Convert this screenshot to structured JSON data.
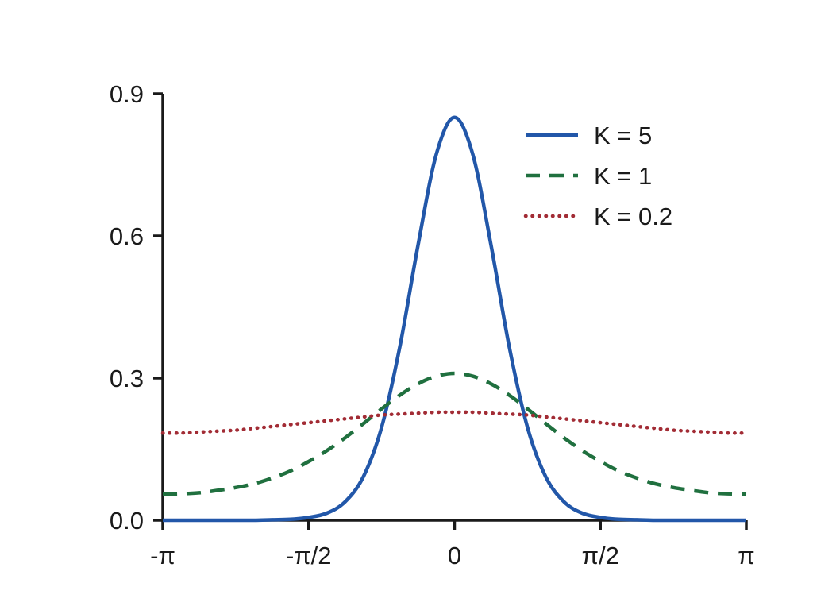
{
  "figure": {
    "background": "#ffffff",
    "text_color": "#1a1a1a"
  },
  "chart_data": {
    "type": "line",
    "title": "",
    "xlabel": "",
    "ylabel": "",
    "xlim": [
      -1,
      1
    ],
    "ylim": [
      0,
      0.9
    ],
    "grid": false,
    "legend_position": "upper right",
    "axis_color": "#1a1a1a",
    "x_units": "radians, expressed as multiples of pi",
    "x_over_pi": [
      -1,
      -0.9375,
      -0.875,
      -0.8125,
      -0.75,
      -0.6875,
      -0.625,
      -0.5625,
      -0.5,
      -0.4375,
      -0.375,
      -0.3125,
      -0.25,
      -0.1875,
      -0.125,
      -0.0625,
      0,
      0.0625,
      0.125,
      0.1875,
      0.25,
      0.3125,
      0.375,
      0.4375,
      0.5,
      0.5625,
      0.625,
      0.6875,
      0.75,
      0.8125,
      0.875,
      0.9375,
      1
    ],
    "series": [
      {
        "name": "K = 5",
        "color": "#2257a9",
        "style": "solid",
        "values": [
          0,
          0,
          0,
          0,
          0,
          0,
          0.001,
          0.002,
          0.006,
          0.015,
          0.039,
          0.092,
          0.196,
          0.366,
          0.581,
          0.772,
          0.85,
          0.772,
          0.581,
          0.366,
          0.196,
          0.092,
          0.039,
          0.015,
          0.006,
          0.002,
          0.001,
          0,
          0,
          0,
          0,
          0,
          0
        ]
      },
      {
        "name": "K = 1",
        "color": "#20703f",
        "style": "dashed",
        "values": [
          0.055,
          0.056,
          0.058,
          0.063,
          0.069,
          0.077,
          0.089,
          0.104,
          0.124,
          0.147,
          0.174,
          0.204,
          0.235,
          0.264,
          0.288,
          0.304,
          0.31,
          0.304,
          0.288,
          0.264,
          0.235,
          0.204,
          0.174,
          0.147,
          0.124,
          0.104,
          0.089,
          0.077,
          0.069,
          0.063,
          0.058,
          0.056,
          0.055
        ]
      },
      {
        "name": "K = 0.2",
        "color": "#a22c35",
        "style": "dotted",
        "values": [
          0.184,
          0.184,
          0.186,
          0.188,
          0.19,
          0.194,
          0.198,
          0.202,
          0.206,
          0.21,
          0.214,
          0.218,
          0.222,
          0.224,
          0.226,
          0.228,
          0.228,
          0.228,
          0.226,
          0.224,
          0.222,
          0.218,
          0.214,
          0.21,
          0.206,
          0.202,
          0.198,
          0.194,
          0.19,
          0.188,
          0.186,
          0.184,
          0.184
        ]
      }
    ],
    "x_ticks": [
      {
        "value": -1,
        "label": "-π"
      },
      {
        "value": -0.5,
        "label": "-π/2"
      },
      {
        "value": 0,
        "label": "0"
      },
      {
        "value": 0.5,
        "label": "π/2"
      },
      {
        "value": 1,
        "label": "π"
      }
    ],
    "y_ticks": [
      {
        "value": 0,
        "label": "0.0"
      },
      {
        "value": 0.3,
        "label": "0.3"
      },
      {
        "value": 0.6,
        "label": "0.6"
      },
      {
        "value": 0.9,
        "label": "0.9"
      }
    ]
  }
}
